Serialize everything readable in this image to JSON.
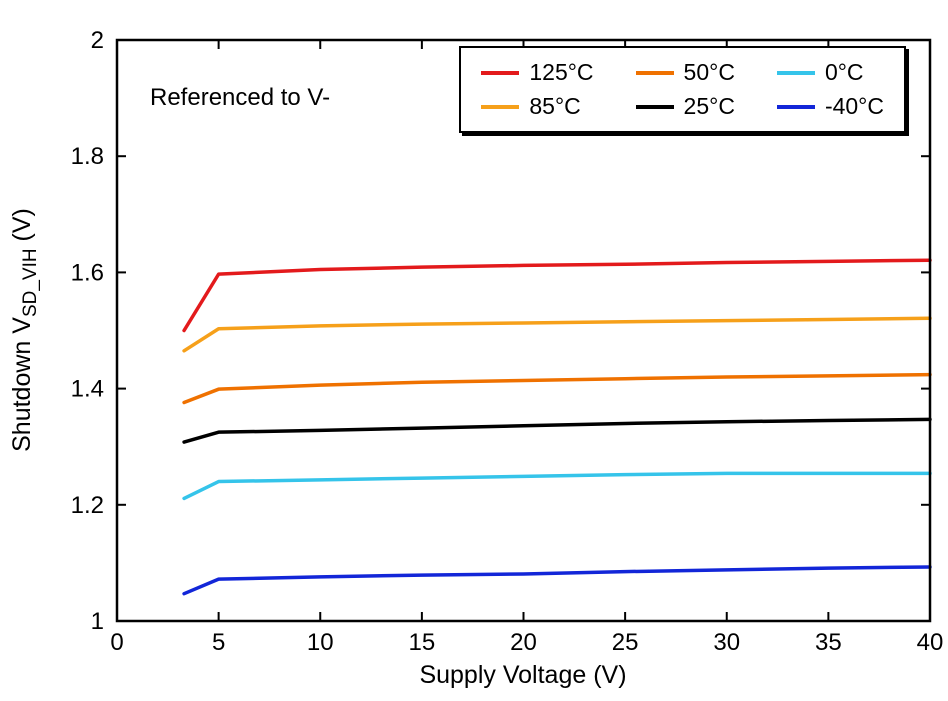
{
  "figure": {
    "ylabel_prefix": "Shutdown V",
    "ylabel_sub": "SD_VIH",
    "ylabel_suffix": " (V)"
  },
  "chart_data": {
    "type": "line",
    "title": "",
    "annotation": "Referenced to V-",
    "xlabel": "Supply Voltage (V)",
    "ylabel": "Shutdown V_SD_VIH (V)",
    "xlim": [
      0,
      40
    ],
    "ylim": [
      1,
      2
    ],
    "xticks": [
      0,
      5,
      10,
      15,
      20,
      25,
      30,
      35,
      40
    ],
    "yticks": [
      1,
      1.2,
      1.4,
      1.6,
      1.8,
      2
    ],
    "grid": false,
    "legend_position": "top-right-inside",
    "legend_order": [
      "125°C",
      "50°C",
      "0°C",
      "85°C",
      "25°C",
      "-40°C"
    ],
    "x": [
      3.3,
      5,
      10,
      15,
      20,
      25,
      30,
      35,
      40
    ],
    "series": [
      {
        "name": "125°C",
        "color": "#e31a1c",
        "values": [
          1.5,
          1.597,
          1.605,
          1.609,
          1.612,
          1.614,
          1.617,
          1.619,
          1.621
        ]
      },
      {
        "name": "85°C",
        "color": "#f6a01a",
        "values": [
          1.465,
          1.503,
          1.508,
          1.511,
          1.513,
          1.515,
          1.517,
          1.519,
          1.521
        ]
      },
      {
        "name": "50°C",
        "color": "#ef7100",
        "values": [
          1.376,
          1.399,
          1.406,
          1.411,
          1.414,
          1.417,
          1.42,
          1.422,
          1.424
        ]
      },
      {
        "name": "25°C",
        "color": "#000000",
        "values": [
          1.308,
          1.325,
          1.328,
          1.332,
          1.336,
          1.34,
          1.343,
          1.345,
          1.347
        ]
      },
      {
        "name": "0°C",
        "color": "#35c4ea",
        "values": [
          1.211,
          1.24,
          1.243,
          1.246,
          1.249,
          1.252,
          1.254,
          1.254,
          1.254
        ]
      },
      {
        "name": "-40°C",
        "color": "#1226d8",
        "values": [
          1.047,
          1.072,
          1.076,
          1.079,
          1.081,
          1.085,
          1.088,
          1.091,
          1.093
        ]
      }
    ]
  }
}
